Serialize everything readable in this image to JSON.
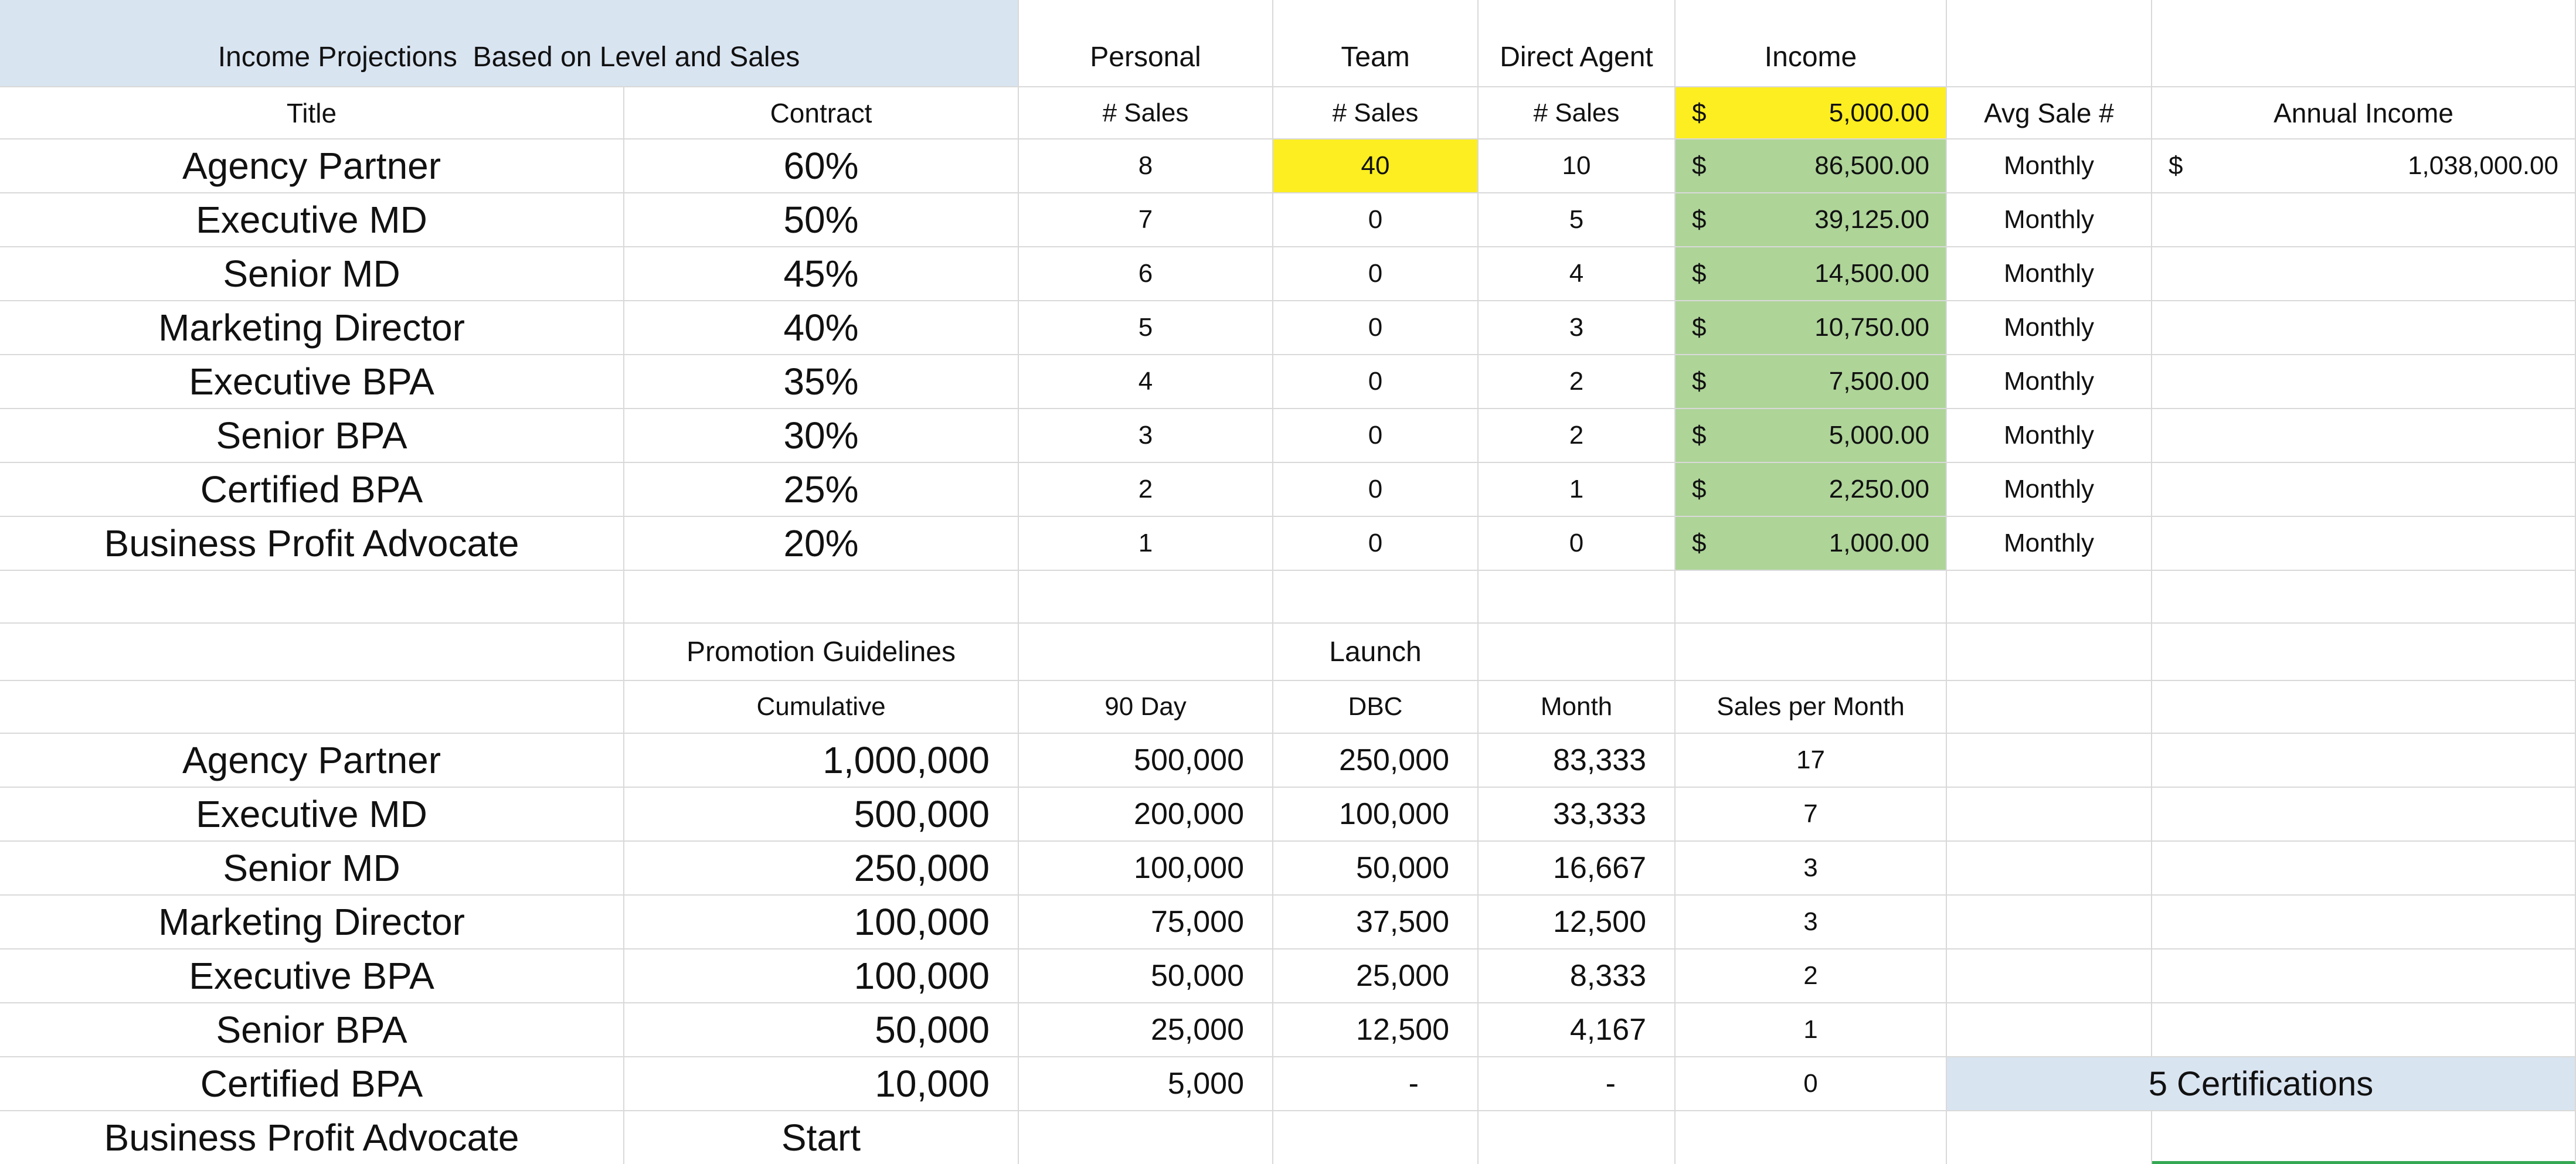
{
  "banner": {
    "title": "Income Projections  Based on Level and Sales"
  },
  "currency_symbol": "$",
  "top_table": {
    "group_headers": {
      "personal": "Personal",
      "team": "Team",
      "direct_agent": "Direct Agent",
      "income": "Income"
    },
    "headers": {
      "title": "Title",
      "contract": "Contract",
      "personal_sales": "# Sales",
      "team_sales": "# Sales",
      "direct_sales": "# Sales",
      "income_base": "5,000.00",
      "avg_sale": "Avg Sale #",
      "annual_income": "Annual Income"
    },
    "rows": [
      {
        "title": "Agency Partner",
        "contract": "60%",
        "personal": "8",
        "team": "40",
        "direct": "10",
        "income": "86,500.00",
        "freq": "Monthly",
        "annual": "1,038,000.00"
      },
      {
        "title": "Executive MD",
        "contract": "50%",
        "personal": "7",
        "team": "0",
        "direct": "5",
        "income": "39,125.00",
        "freq": "Monthly"
      },
      {
        "title": "Senior MD",
        "contract": "45%",
        "personal": "6",
        "team": "0",
        "direct": "4",
        "income": "14,500.00",
        "freq": "Monthly"
      },
      {
        "title": "Marketing Director",
        "contract": "40%",
        "personal": "5",
        "team": "0",
        "direct": "3",
        "income": "10,750.00",
        "freq": "Monthly"
      },
      {
        "title": "Executive BPA",
        "contract": "35%",
        "personal": "4",
        "team": "0",
        "direct": "2",
        "income": "7,500.00",
        "freq": "Monthly"
      },
      {
        "title": "Senior BPA",
        "contract": "30%",
        "personal": "3",
        "team": "0",
        "direct": "2",
        "income": "5,000.00",
        "freq": "Monthly"
      },
      {
        "title": "Certified BPA",
        "contract": "25%",
        "personal": "2",
        "team": "0",
        "direct": "1",
        "income": "2,250.00",
        "freq": "Monthly"
      },
      {
        "title": "Business Profit Advocate",
        "contract": "20%",
        "personal": "1",
        "team": "0",
        "direct": "0",
        "income": "1,000.00",
        "freq": "Monthly"
      }
    ]
  },
  "bottom_table": {
    "section_label": "Promotion Guidelines",
    "launch_label": "Launch",
    "headers": {
      "cumulative": "Cumulative",
      "ninety_day": "90 Day",
      "dbc": "DBC",
      "month": "Month",
      "sales_per_month": "Sales per Month"
    },
    "rows": [
      {
        "title": "Agency Partner",
        "cumulative": "1,000,000",
        "ninety_day": "500,000",
        "dbc": "250,000",
        "month": "83,333",
        "spm": "17"
      },
      {
        "title": "Executive MD",
        "cumulative": "500,000",
        "ninety_day": "200,000",
        "dbc": "100,000",
        "month": "33,333",
        "spm": "7"
      },
      {
        "title": "Senior MD",
        "cumulative": "250,000",
        "ninety_day": "100,000",
        "dbc": "50,000",
        "month": "16,667",
        "spm": "3"
      },
      {
        "title": "Marketing Director",
        "cumulative": "100,000",
        "ninety_day": "75,000",
        "dbc": "37,500",
        "month": "12,500",
        "spm": "3"
      },
      {
        "title": "Executive BPA",
        "cumulative": "100,000",
        "ninety_day": "50,000",
        "dbc": "25,000",
        "month": "8,333",
        "spm": "2"
      },
      {
        "title": "Senior BPA",
        "cumulative": "50,000",
        "ninety_day": "25,000",
        "dbc": "12,500",
        "month": "4,167",
        "spm": "1"
      },
      {
        "title": "Certified BPA",
        "cumulative": "10,000",
        "ninety_day": "5,000",
        "dbc": "-",
        "month": "-",
        "spm": "0"
      },
      {
        "title": "Business Profit Advocate",
        "cumulative": "Start"
      }
    ],
    "certifications_note": "5 Certifications"
  },
  "colors": {
    "banner_blue": "#d9e4f1",
    "note_blue": "#d9e4f1",
    "highlight_yellow": "#fdee21",
    "income_green": "#aed498",
    "selection_green": "#34a853",
    "gridline": "#d9d9d9"
  }
}
